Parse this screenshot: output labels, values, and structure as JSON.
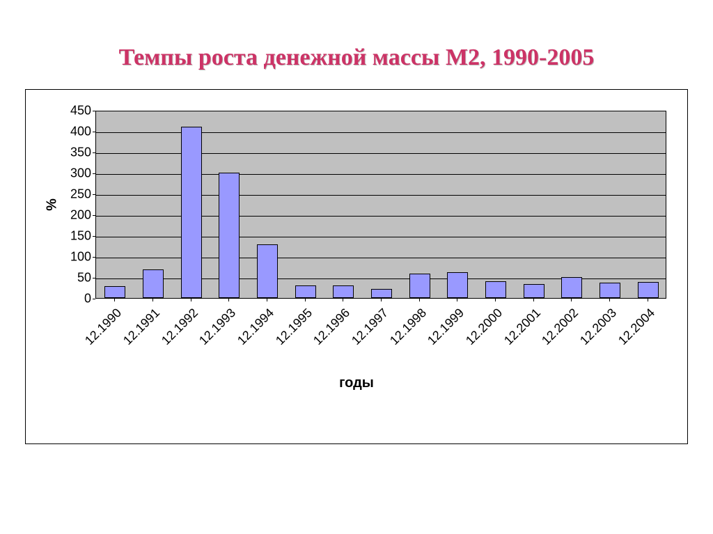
{
  "title": "Темпы роста денежной массы М2, 1990-2005",
  "title_color": "#cc3366",
  "title_fontsize": 34,
  "title_font": "Times New Roman",
  "chart": {
    "type": "bar",
    "ylabel": "%",
    "xlabel": "годы",
    "ylabel_fontsize": 20,
    "xlabel_fontsize": 20,
    "ylim": [
      0,
      450
    ],
    "ytick_step": 50,
    "yticks": [
      0,
      50,
      100,
      150,
      200,
      250,
      300,
      350,
      400,
      450
    ],
    "categories": [
      "12.1990",
      "12.1991",
      "12.1992",
      "12.1993",
      "12.1994",
      "12.1995",
      "12.1996",
      "12.1997",
      "12.1998",
      "12.1999",
      "12.2000",
      "12.2001",
      "12.2002",
      "12.2003",
      "12.2004"
    ],
    "values": [
      28,
      68,
      410,
      300,
      128,
      30,
      30,
      21,
      58,
      61,
      40,
      34,
      50,
      37,
      39
    ],
    "bar_color": "#9999ff",
    "bar_border_color": "#000000",
    "plot_background": "#c0c0c0",
    "grid_color": "#000000",
    "page_background": "#ffffff",
    "outer_border_color": "#000000",
    "bar_width_ratio": 0.55,
    "tick_fontsize": 18,
    "xlabel_rotation": -45
  }
}
